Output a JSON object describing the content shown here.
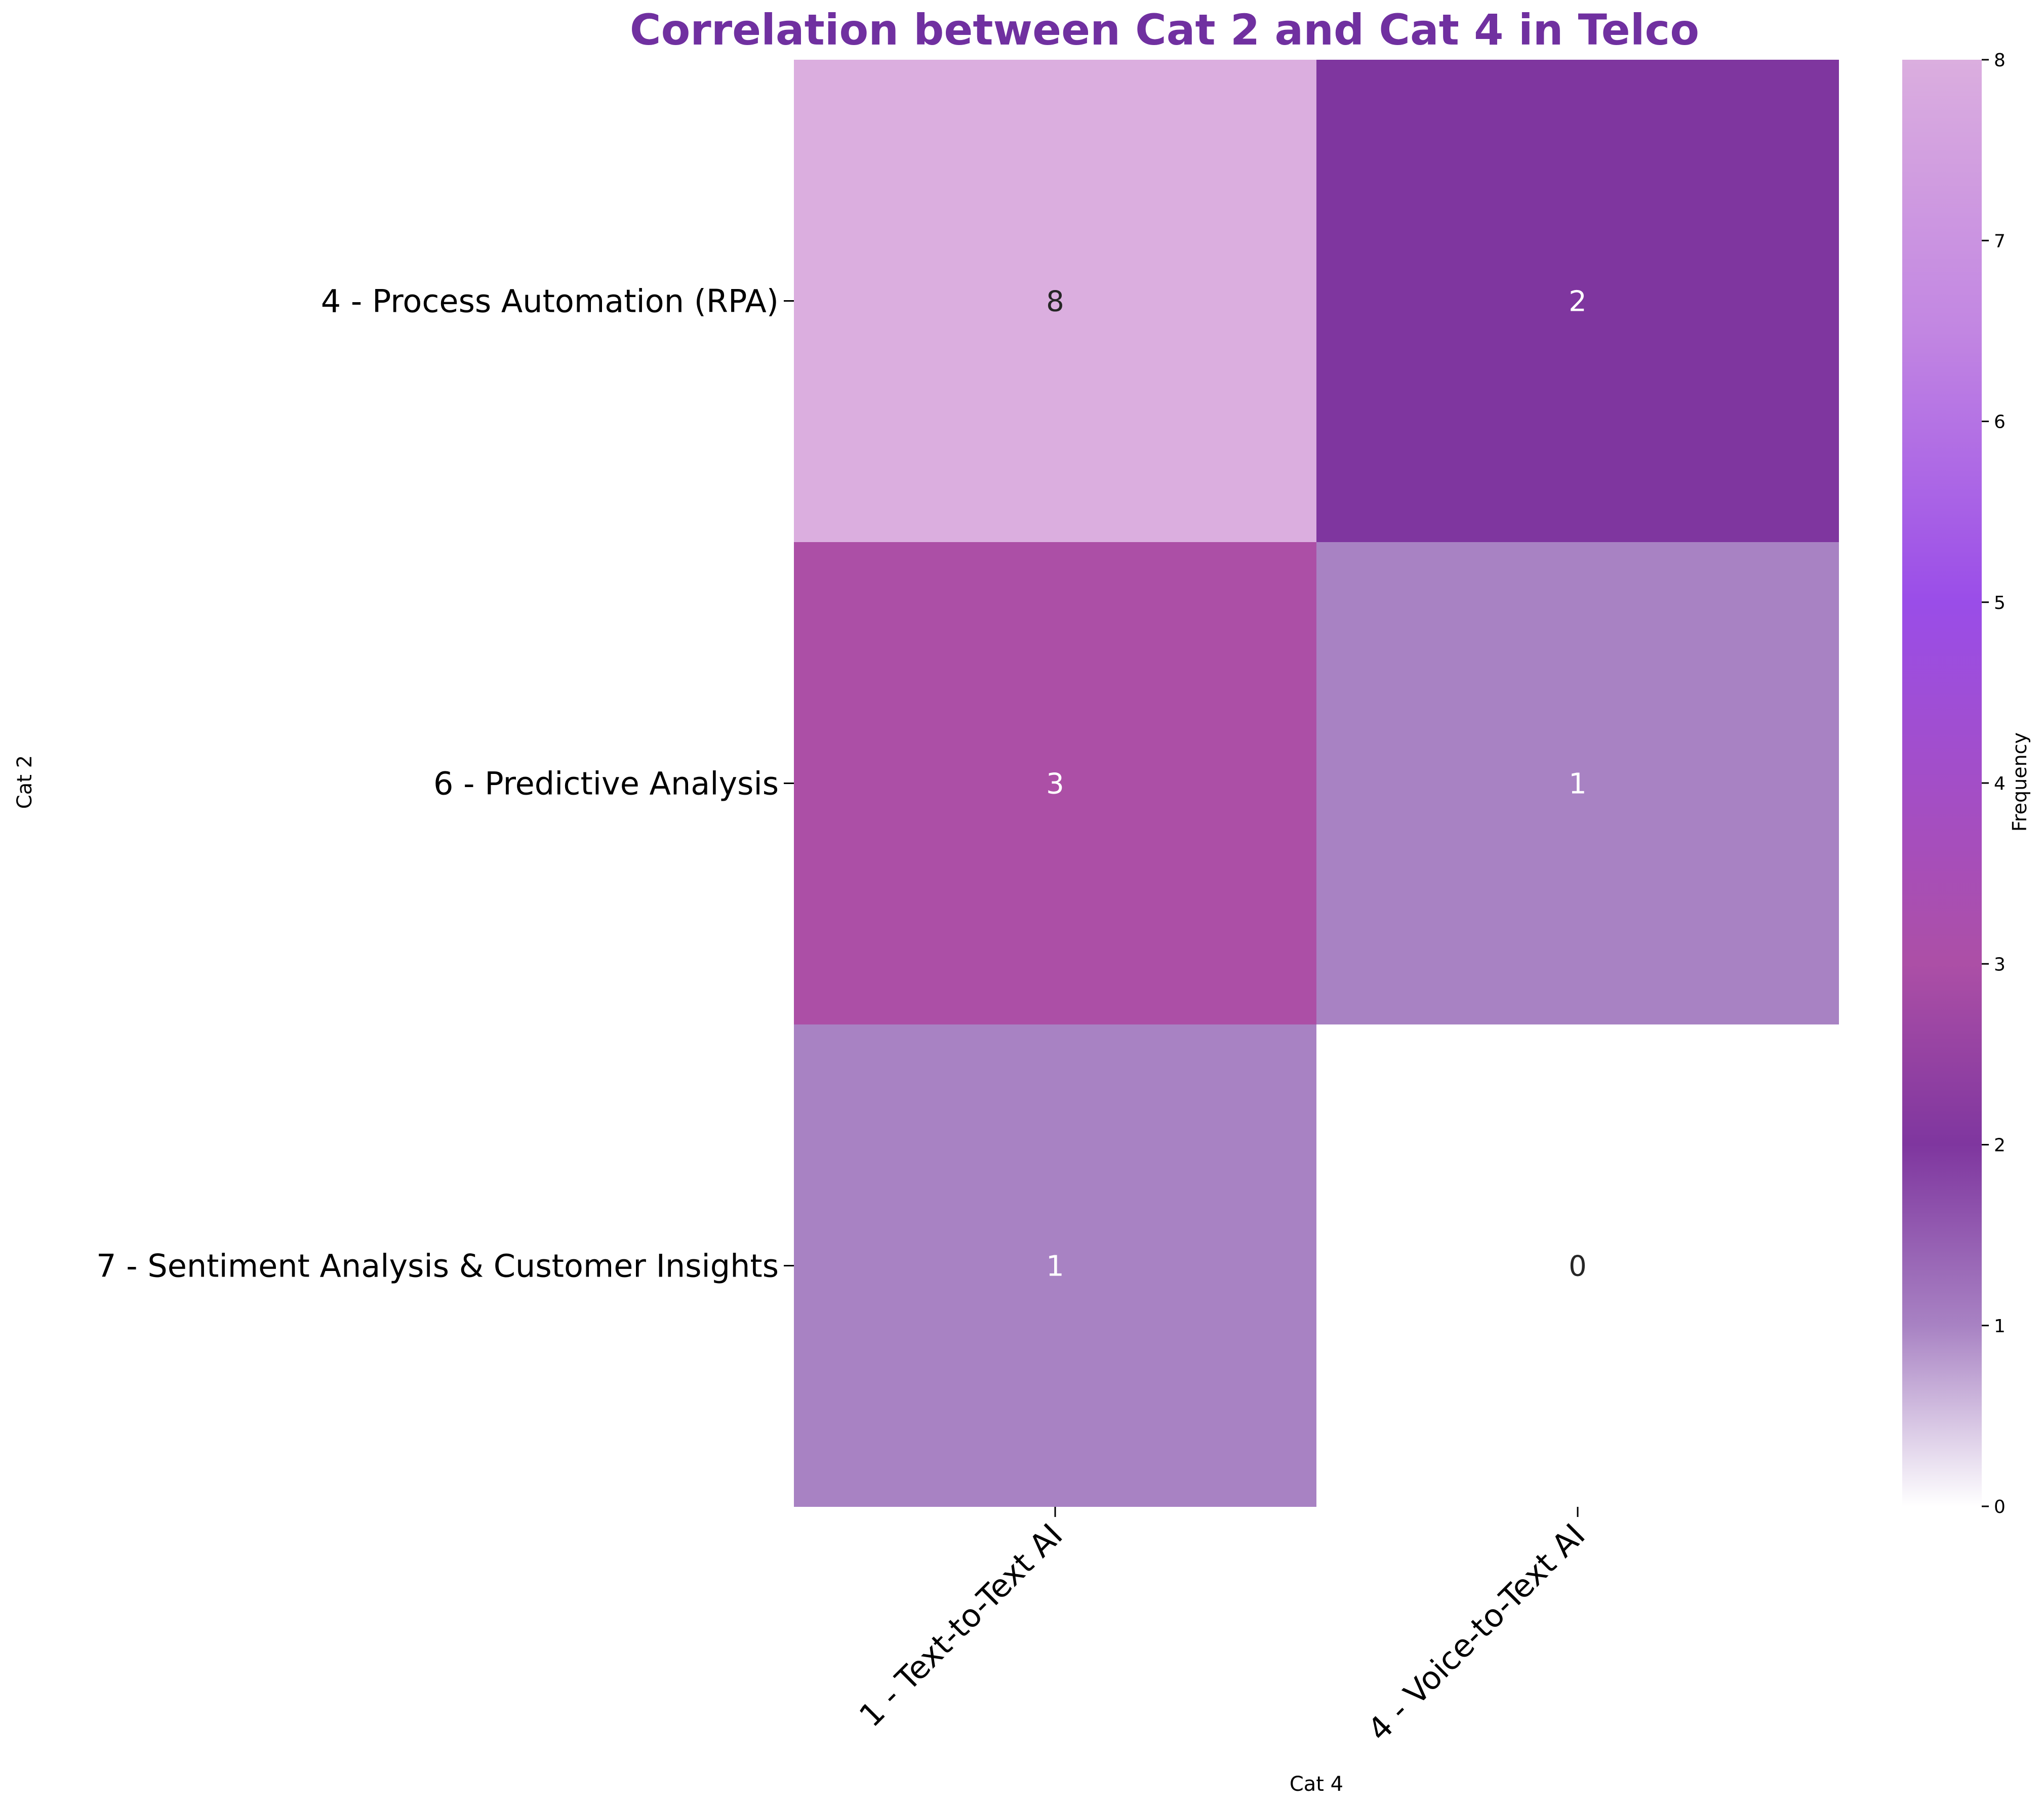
{
  "chart_data": {
    "type": "heatmap",
    "title": "Correlation between Cat 2 and Cat 4 in Telco",
    "title_color": "#7030a0",
    "xlabel": "Cat 4",
    "ylabel": "Cat 2",
    "x_categories": [
      "1 - Text-to-Text AI",
      "4 - Voice-to-Text AI"
    ],
    "y_categories": [
      "4 - Process Automation (RPA)",
      "6 - Predictive Analysis",
      "7 - Sentiment Analysis & Customer Insights"
    ],
    "values": [
      [
        8,
        2
      ],
      [
        3,
        1
      ],
      [
        1,
        0
      ]
    ],
    "cell_labels": [
      [
        "8",
        "2"
      ],
      [
        "3",
        "1"
      ],
      [
        "1",
        "0"
      ]
    ],
    "colorbar": {
      "label": "Frequency",
      "range": [
        0,
        8
      ],
      "ticks": [
        0,
        1,
        2,
        3,
        4,
        5,
        6,
        7,
        8
      ],
      "tick_labels": [
        "0",
        "1",
        "2",
        "3",
        "4",
        "5",
        "6",
        "7",
        "8"
      ],
      "colors": [
        {
          "value": 0,
          "color": "#ffffff"
        },
        {
          "value": 1,
          "color": "#a882c3"
        },
        {
          "value": 2,
          "color": "#7f369f"
        },
        {
          "value": 3,
          "color": "#ac4fa6"
        },
        {
          "value": 5,
          "color": "#9a4de8"
        },
        {
          "value": 6.5,
          "color": "#c286e2"
        },
        {
          "value": 8,
          "color": "#dbaedf"
        }
      ]
    }
  }
}
